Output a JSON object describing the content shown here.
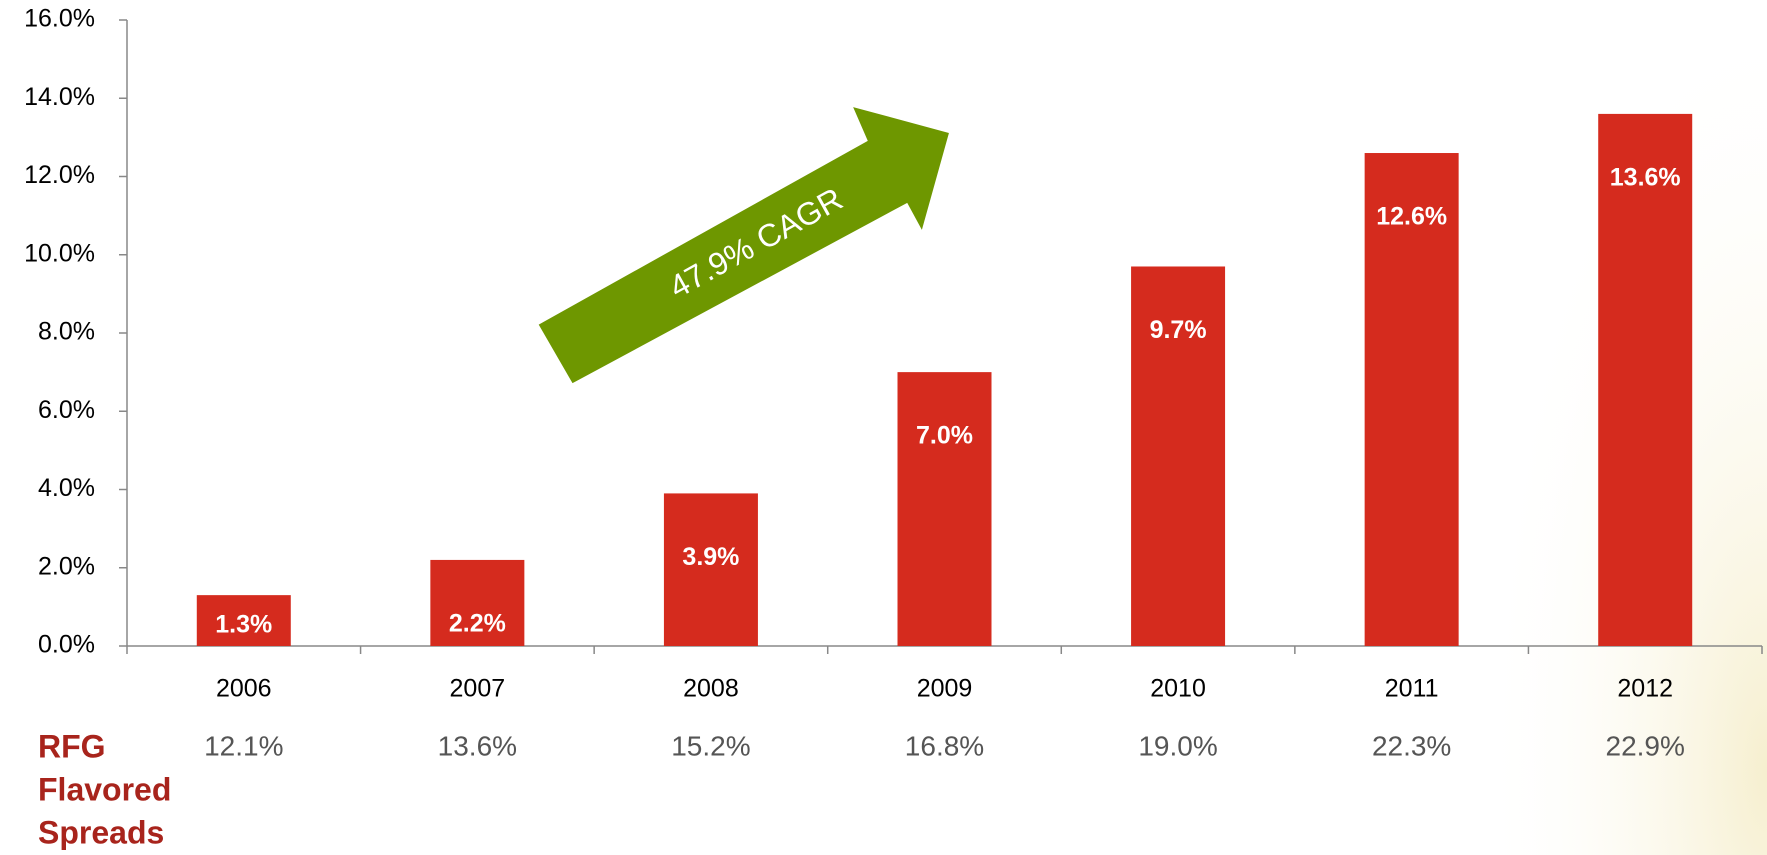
{
  "chart_data": {
    "type": "bar",
    "categories": [
      "2006",
      "2007",
      "2008",
      "2009",
      "2010",
      "2011",
      "2012"
    ],
    "values": [
      1.3,
      2.2,
      3.9,
      7.0,
      9.7,
      12.6,
      13.6
    ],
    "value_labels": [
      "1.3%",
      "2.2%",
      "3.9%",
      "7.0%",
      "9.7%",
      "12.6%",
      "13.6%"
    ],
    "color": "#d52b1e",
    "ylim": [
      0,
      16
    ],
    "yticks": [
      {
        "value": 0,
        "label": "0.0%"
      },
      {
        "value": 2,
        "label": "2.0%"
      },
      {
        "value": 4,
        "label": "4.0%"
      },
      {
        "value": 6,
        "label": "6.0%"
      },
      {
        "value": 8,
        "label": "8.0%"
      },
      {
        "value": 10,
        "label": "10.0%"
      },
      {
        "value": 12,
        "label": "12.0%"
      },
      {
        "value": 14,
        "label": "14.0%"
      },
      {
        "value": 16,
        "label": "16.0%"
      }
    ],
    "annotation": "47.9% CAGR",
    "annotation_color": "#6e9700",
    "table_row": {
      "label_lines": [
        "RFG",
        "Flavored",
        "Spreads"
      ],
      "label_color": "#a8241c",
      "values": [
        "12.1%",
        "13.6%",
        "15.2%",
        "16.8%",
        "19.0%",
        "22.3%",
        "22.9%"
      ]
    }
  }
}
